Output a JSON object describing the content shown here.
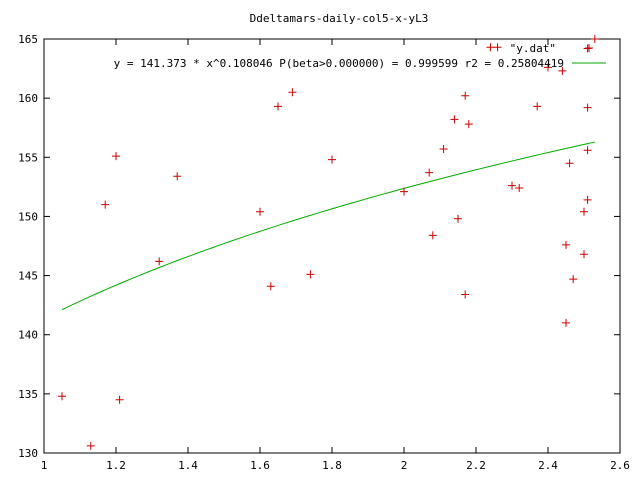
{
  "chart_data": {
    "type": "scatter",
    "title": "Ddeltamars-daily-col5-x-yL3",
    "xlabel": "",
    "ylabel": "",
    "xlim": [
      1,
      2.6
    ],
    "ylim": [
      130,
      165
    ],
    "x_ticks": [
      "1",
      "1.2",
      "1.4",
      "1.6",
      "1.8",
      "2",
      "2.2",
      "2.4",
      "2.6"
    ],
    "y_ticks": [
      "130",
      "135",
      "140",
      "145",
      "150",
      "155",
      "160",
      "165"
    ],
    "grid": false,
    "legend_position": "top-right",
    "series": [
      {
        "name": "\"y.dat\"",
        "marker": "plus",
        "color": "#cc0000",
        "points": [
          [
            1.05,
            134.8
          ],
          [
            1.13,
            130.6
          ],
          [
            1.17,
            151.0
          ],
          [
            1.2,
            155.1
          ],
          [
            1.21,
            134.5
          ],
          [
            1.32,
            146.2
          ],
          [
            1.37,
            153.4
          ],
          [
            1.6,
            150.4
          ],
          [
            1.63,
            144.1
          ],
          [
            1.65,
            159.3
          ],
          [
            1.69,
            160.5
          ],
          [
            1.74,
            145.1
          ],
          [
            1.8,
            154.8
          ],
          [
            2.0,
            152.1
          ],
          [
            2.07,
            153.7
          ],
          [
            2.08,
            148.4
          ],
          [
            2.11,
            155.7
          ],
          [
            2.14,
            158.2
          ],
          [
            2.15,
            149.8
          ],
          [
            2.17,
            143.4
          ],
          [
            2.17,
            160.2
          ],
          [
            2.18,
            157.8
          ],
          [
            2.24,
            164.3
          ],
          [
            2.26,
            164.3
          ],
          [
            2.3,
            152.6
          ],
          [
            2.32,
            152.4
          ],
          [
            2.37,
            159.3
          ],
          [
            2.4,
            162.6
          ],
          [
            2.44,
            162.3
          ],
          [
            2.45,
            141.0
          ],
          [
            2.45,
            147.6
          ],
          [
            2.46,
            154.5
          ],
          [
            2.47,
            144.7
          ],
          [
            2.5,
            150.4
          ],
          [
            2.5,
            146.8
          ],
          [
            2.51,
            151.4
          ],
          [
            2.51,
            155.6
          ],
          [
            2.51,
            159.2
          ],
          [
            2.51,
            164.2
          ],
          [
            2.53,
            165.0
          ]
        ]
      },
      {
        "name": "y = 141.373 * x^0.108046 P(beta>0.000000) = 0.999599 r2 = 0.25804419",
        "type": "line",
        "color": "#00aa00",
        "fit": {
          "a": 141.373,
          "b": 0.108046,
          "x_from": 1.05,
          "x_to": 2.53
        }
      }
    ]
  }
}
